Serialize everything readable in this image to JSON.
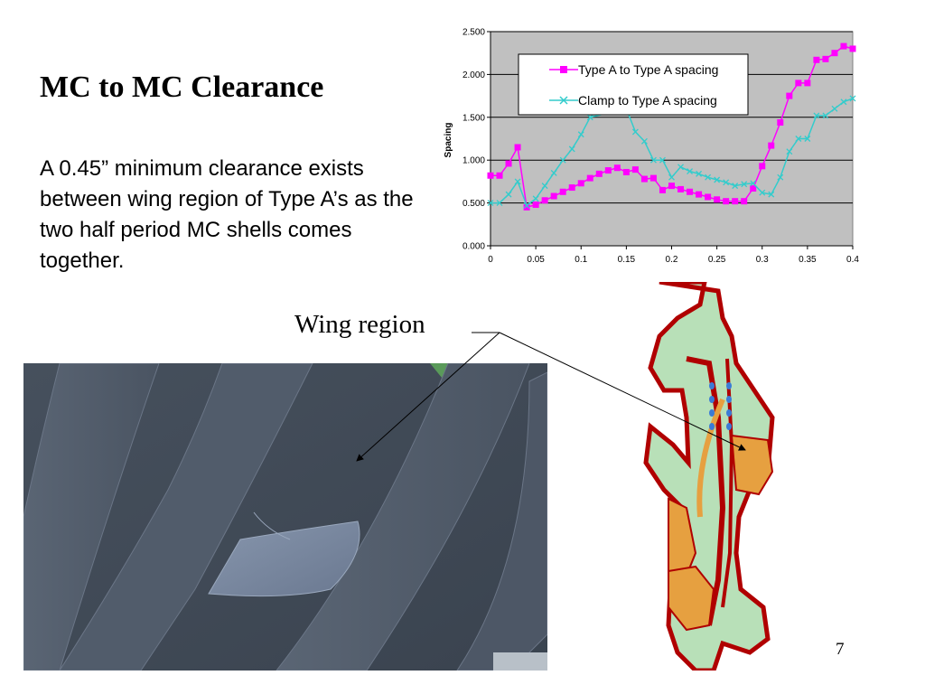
{
  "slide": {
    "title": "MC to MC Clearance",
    "body": "A 0.45” minimum clearance exists between wing region of Type A’s as the two half period MC shells comes together.",
    "callout": "Wing region",
    "page_number": "7"
  },
  "chart_data": {
    "type": "line",
    "title": "",
    "xlabel": "",
    "ylabel": "Spacing",
    "xlim": [
      0,
      0.4
    ],
    "ylim": [
      0,
      2.5
    ],
    "x_ticks": [
      "0",
      "0.05",
      "0.1",
      "0.15",
      "0.2",
      "0.25",
      "0.3",
      "0.35",
      "0.4"
    ],
    "y_ticks": [
      "0.000",
      "0.500",
      "1.000",
      "1.500",
      "2.000",
      "2.500"
    ],
    "grid": true,
    "legend": "top-right",
    "series": [
      {
        "name": "Type A to Type A spacing",
        "color": "#ff00ff",
        "marker": "square",
        "points": [
          [
            0,
            0.82
          ],
          [
            0.01,
            0.82
          ],
          [
            0.02,
            0.96
          ],
          [
            0.03,
            1.15
          ],
          [
            0.04,
            0.45
          ],
          [
            0.05,
            0.48
          ],
          [
            0.06,
            0.53
          ],
          [
            0.07,
            0.58
          ],
          [
            0.08,
            0.63
          ],
          [
            0.09,
            0.68
          ],
          [
            0.1,
            0.73
          ],
          [
            0.11,
            0.79
          ],
          [
            0.12,
            0.84
          ],
          [
            0.13,
            0.88
          ],
          [
            0.14,
            0.91
          ],
          [
            0.15,
            0.86
          ],
          [
            0.16,
            0.89
          ],
          [
            0.17,
            0.78
          ],
          [
            0.18,
            0.79
          ],
          [
            0.19,
            0.65
          ],
          [
            0.2,
            0.7
          ],
          [
            0.21,
            0.66
          ],
          [
            0.22,
            0.63
          ],
          [
            0.23,
            0.6
          ],
          [
            0.24,
            0.57
          ],
          [
            0.25,
            0.54
          ],
          [
            0.26,
            0.52
          ],
          [
            0.27,
            0.52
          ],
          [
            0.28,
            0.52
          ],
          [
            0.29,
            0.67
          ],
          [
            0.3,
            0.93
          ],
          [
            0.31,
            1.17
          ],
          [
            0.32,
            1.44
          ],
          [
            0.33,
            1.75
          ],
          [
            0.34,
            1.9
          ],
          [
            0.35,
            1.9
          ],
          [
            0.36,
            2.17
          ],
          [
            0.37,
            2.18
          ],
          [
            0.38,
            2.25
          ],
          [
            0.39,
            2.33
          ],
          [
            0.4,
            2.3
          ]
        ]
      },
      {
        "name": "Clamp to Type A spacing",
        "color": "#33cccc",
        "marker": "x",
        "points": [
          [
            0,
            0.5
          ],
          [
            0.01,
            0.5
          ],
          [
            0.02,
            0.6
          ],
          [
            0.03,
            0.75
          ],
          [
            0.04,
            0.47
          ],
          [
            0.05,
            0.55
          ],
          [
            0.06,
            0.7
          ],
          [
            0.07,
            0.85
          ],
          [
            0.08,
            1.0
          ],
          [
            0.09,
            1.13
          ],
          [
            0.1,
            1.3
          ],
          [
            0.11,
            1.5
          ],
          [
            0.15,
            1.6
          ],
          [
            0.16,
            1.33
          ],
          [
            0.17,
            1.22
          ],
          [
            0.18,
            1.0
          ],
          [
            0.19,
            1.0
          ],
          [
            0.2,
            0.8
          ],
          [
            0.21,
            0.92
          ],
          [
            0.22,
            0.87
          ],
          [
            0.23,
            0.84
          ],
          [
            0.24,
            0.8
          ],
          [
            0.25,
            0.77
          ],
          [
            0.26,
            0.74
          ],
          [
            0.27,
            0.7
          ],
          [
            0.28,
            0.72
          ],
          [
            0.29,
            0.73
          ],
          [
            0.3,
            0.62
          ],
          [
            0.31,
            0.6
          ],
          [
            0.32,
            0.8
          ],
          [
            0.33,
            1.1
          ],
          [
            0.34,
            1.25
          ],
          [
            0.35,
            1.25
          ],
          [
            0.36,
            1.52
          ],
          [
            0.37,
            1.52
          ],
          [
            0.38,
            1.6
          ],
          [
            0.39,
            1.68
          ],
          [
            0.4,
            1.72
          ]
        ]
      }
    ]
  }
}
